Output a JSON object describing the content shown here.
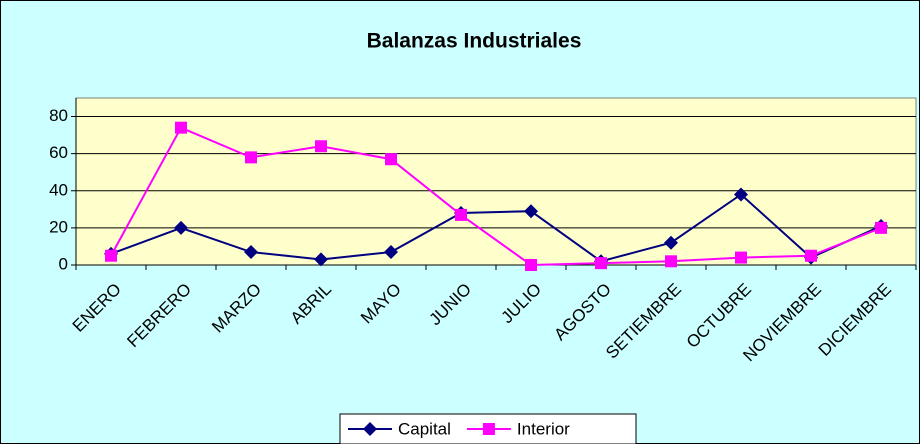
{
  "chart_data": {
    "type": "line",
    "title": "Balanzas Industriales",
    "categories": [
      "ENERO",
      "FEBRERO",
      "MARZO",
      "ABRIL",
      "MAYO",
      "JUNIO",
      "JULIO",
      "AGOSTO",
      "SETIEMBRE",
      "OCTUBRE",
      "NOVIEMBRE",
      "DICIEMBRE"
    ],
    "series": [
      {
        "name": "Capital",
        "color": "#000080",
        "marker": "diamond",
        "values": [
          6,
          20,
          7,
          3,
          7,
          28,
          29,
          2,
          12,
          38,
          4,
          21
        ]
      },
      {
        "name": "Interior",
        "color": "#ff00ff",
        "marker": "square",
        "values": [
          5,
          74,
          58,
          64,
          57,
          27,
          0,
          1,
          2,
          4,
          5,
          20
        ]
      }
    ],
    "ylim": [
      0,
      90
    ],
    "yticks": [
      0,
      20,
      40,
      60,
      80
    ],
    "grid": true,
    "legend": "bottom"
  }
}
